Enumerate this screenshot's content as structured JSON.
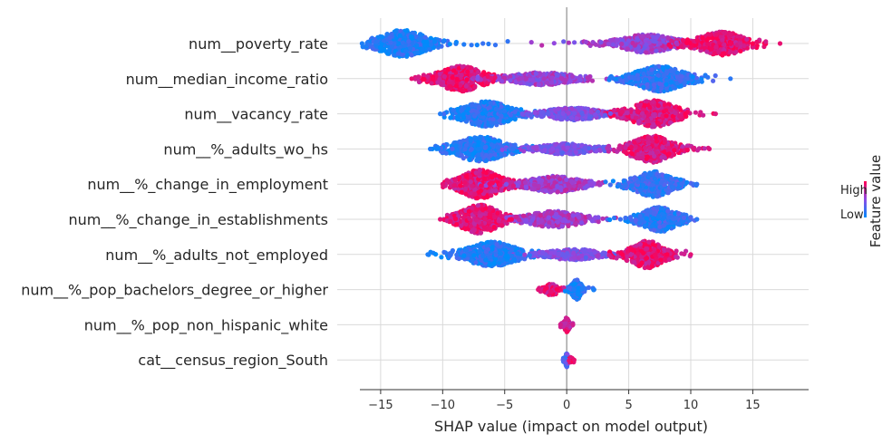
{
  "chart_data": {
    "type": "scatter",
    "subtype": "shap-beeswarm",
    "title": "",
    "xlabel": "SHAP value (impact on model output)",
    "ylabel": "",
    "xlim": [
      -18.5,
      19.5
    ],
    "xticks": [
      -15,
      -10,
      -5,
      0,
      5,
      10,
      15
    ],
    "xtick_labels": [
      "−15",
      "−10",
      "−5",
      "0",
      "5",
      "10",
      "15"
    ],
    "grid": true,
    "colorbar": {
      "title": "Feature value",
      "high_label": "High",
      "low_label": "Low",
      "low_color": "#008bfb",
      "high_color": "#ff0052"
    },
    "features": [
      {
        "name": "num__poverty_rate",
        "min": -16.5,
        "max": 17.2,
        "lobes": [
          {
            "center": -13.2,
            "spread": 2.2,
            "half_height": 15,
            "value": 0.1
          },
          {
            "center": 6.5,
            "spread": 2.5,
            "half_height": 10,
            "value": 0.55
          },
          {
            "center": 12.5,
            "spread": 2.2,
            "half_height": 13,
            "value": 0.9
          }
        ]
      },
      {
        "name": "num__median_income_ratio",
        "min": -12.5,
        "max": 13.2,
        "lobes": [
          {
            "center": -8.5,
            "spread": 2.0,
            "half_height": 14,
            "value": 0.9
          },
          {
            "center": -2.0,
            "spread": 3.0,
            "half_height": 7,
            "value": 0.55
          },
          {
            "center": 7.5,
            "spread": 2.2,
            "half_height": 14,
            "value": 0.15
          }
        ]
      },
      {
        "name": "num__vacancy_rate",
        "min": -10.2,
        "max": 12.0,
        "lobes": [
          {
            "center": -6.5,
            "spread": 2.2,
            "half_height": 14,
            "value": 0.12
          },
          {
            "center": 0.5,
            "spread": 2.5,
            "half_height": 7,
            "value": 0.45
          },
          {
            "center": 7.0,
            "spread": 2.0,
            "half_height": 15,
            "value": 0.85
          }
        ]
      },
      {
        "name": "num__%_adults_wo_hs",
        "min": -11.0,
        "max": 11.5,
        "lobes": [
          {
            "center": -7.0,
            "spread": 2.2,
            "half_height": 14,
            "value": 0.12
          },
          {
            "center": 0.0,
            "spread": 2.5,
            "half_height": 6,
            "value": 0.45
          },
          {
            "center": 6.8,
            "spread": 1.8,
            "half_height": 15,
            "value": 0.85
          }
        ]
      },
      {
        "name": "num__%_change_in_employment",
        "min": -10.0,
        "max": 10.5,
        "lobes": [
          {
            "center": -7.0,
            "spread": 1.8,
            "half_height": 16,
            "value": 0.88
          },
          {
            "center": -1.0,
            "spread": 2.5,
            "half_height": 9,
            "value": 0.6
          },
          {
            "center": 7.0,
            "spread": 1.8,
            "half_height": 14,
            "value": 0.18
          }
        ]
      },
      {
        "name": "num__%_change_in_establishments",
        "min": -10.2,
        "max": 10.5,
        "lobes": [
          {
            "center": -7.0,
            "spread": 1.8,
            "half_height": 16,
            "value": 0.88
          },
          {
            "center": -1.0,
            "spread": 2.5,
            "half_height": 9,
            "value": 0.6
          },
          {
            "center": 7.5,
            "spread": 1.6,
            "half_height": 14,
            "value": 0.15
          }
        ]
      },
      {
        "name": "num__%_adults_not_employed",
        "min": -11.2,
        "max": 10.0,
        "lobes": [
          {
            "center": -6.0,
            "spread": 2.2,
            "half_height": 14,
            "value": 0.1
          },
          {
            "center": 0.5,
            "spread": 2.5,
            "half_height": 6,
            "value": 0.45
          },
          {
            "center": 6.5,
            "spread": 1.6,
            "half_height": 15,
            "value": 0.88
          }
        ]
      },
      {
        "name": "num__%_pop_bachelors_degree_or_higher",
        "min": -2.3,
        "max": 2.2,
        "lobes": [
          {
            "center": -1.2,
            "spread": 0.5,
            "half_height": 7,
            "value": 0.88
          },
          {
            "center": 0.8,
            "spread": 0.45,
            "half_height": 11,
            "value": 0.1
          }
        ]
      },
      {
        "name": "num__%_pop_non_hispanic_white",
        "min": -0.5,
        "max": 0.5,
        "lobes": [
          {
            "center": 0.0,
            "spread": 0.22,
            "half_height": 8,
            "value": 0.8
          }
        ]
      },
      {
        "name": "cat__census_region_South",
        "min": -0.3,
        "max": 0.6,
        "lobes": [
          {
            "center": 0.0,
            "spread": 0.1,
            "half_height": 8,
            "value": 0.3
          },
          {
            "center": 0.3,
            "spread": 0.15,
            "half_height": 3,
            "value": 0.9
          }
        ]
      }
    ]
  }
}
